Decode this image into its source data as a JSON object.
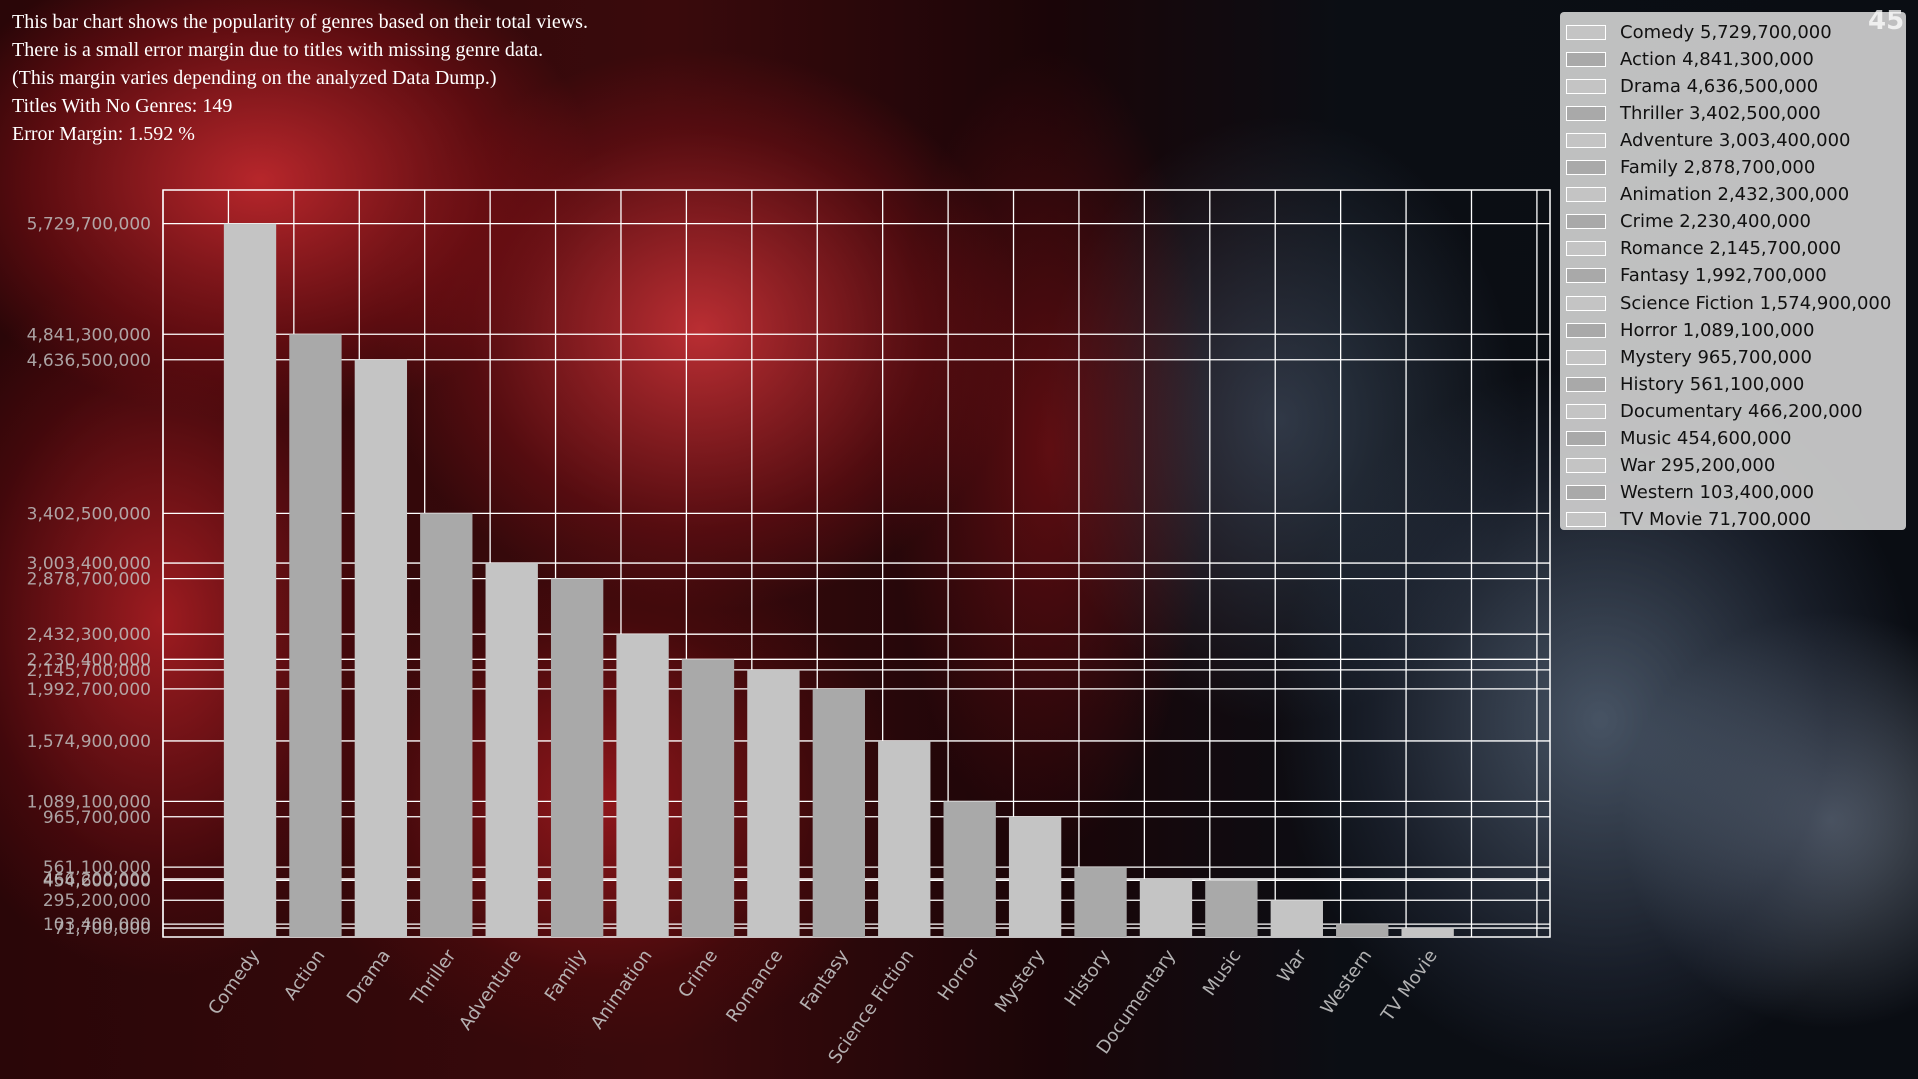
{
  "info": {
    "lines": [
      "This bar chart shows the popularity of genres based on their total views.",
      "There is a small error margin due to titles with missing genre data.",
      "(This margin varies depending on the analyzed Data Dump.)",
      "Titles With No Genres: 149",
      "Error Margin: 1.592 %"
    ]
  },
  "page_number": "45",
  "colors": {
    "bar_light": "#c4c4c4",
    "bar_dark": "#a9a9a9",
    "grid": "#ffffff",
    "legend_bg": "#cdcdcd"
  },
  "chart_data": {
    "type": "bar",
    "title": "",
    "xlabel": "",
    "ylabel": "",
    "categories": [
      "Comedy",
      "Action",
      "Drama",
      "Thriller",
      "Adventure",
      "Family",
      "Animation",
      "Crime",
      "Romance",
      "Fantasy",
      "Science Fiction",
      "Horror",
      "Mystery",
      "History",
      "Documentary",
      "Music",
      "War",
      "Western",
      "TV Movie"
    ],
    "values": [
      5729700000,
      4841300000,
      4636500000,
      3402500000,
      3003400000,
      2878700000,
      2432300000,
      2230400000,
      2145700000,
      1992700000,
      1574900000,
      1089100000,
      965700000,
      561100000,
      466200000,
      454600000,
      295200000,
      103400000,
      71700000
    ],
    "tick_labels": [
      "5,729,700,000",
      "4,841,300,000",
      "4,636,500,000",
      "3,402,500,000",
      "3,003,400,000",
      "2,878,700,000",
      "2,432,300,000",
      "2,230,400,000",
      "2,145,700,000",
      "1,992,700,000",
      "1,574,900,000",
      "1,089,100,000",
      "965,700,000",
      "561,100,000",
      "466,200,000",
      "454,600,000",
      "295,200,000",
      "103,400,000",
      "71,700,000"
    ],
    "ylim": [
      0,
      6000000000
    ],
    "grid": true,
    "legend_position": "top-right",
    "legend": [
      "Comedy 5,729,700,000",
      "Action 4,841,300,000",
      "Drama 4,636,500,000",
      "Thriller 3,402,500,000",
      "Adventure 3,003,400,000",
      "Family 2,878,700,000",
      "Animation 2,432,300,000",
      "Crime 2,230,400,000",
      "Romance 2,145,700,000",
      "Fantasy 1,992,700,000",
      "Science Fiction 1,574,900,000",
      "Horror 1,089,100,000",
      "Mystery 965,700,000",
      "History 561,100,000",
      "Documentary 466,200,000",
      "Music 454,600,000",
      "War 295,200,000",
      "Western 103,400,000",
      "TV Movie 71,700,000"
    ]
  }
}
